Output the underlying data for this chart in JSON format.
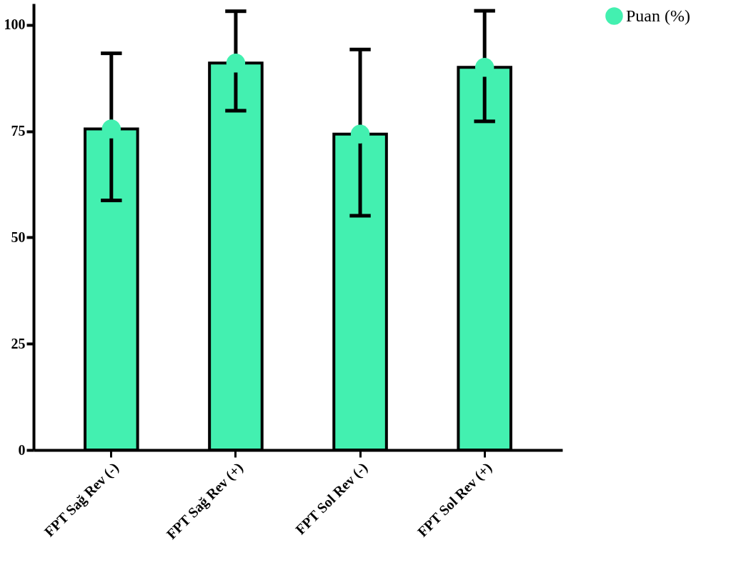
{
  "chart_data": {
    "type": "bar",
    "categories": [
      "FPT Sağ Rev (-)",
      "FPT Sağ Rev (+)",
      "FPT Sol Rev (-)",
      "FPT Sol Rev (+)"
    ],
    "series": [
      {
        "type": "bar",
        "color": "#43f0b0",
        "values": [
          75.5,
          91,
          74.3,
          90
        ],
        "errors": [
          [
            58.7,
            93.3
          ],
          [
            79.8,
            103.2
          ],
          [
            55.1,
            94.2
          ],
          [
            77.3,
            103.3
          ]
        ]
      },
      {
        "type": "scatter",
        "name": "Puan (%)",
        "color": "#43f0b0",
        "x": [
          "FPT Sağ Rev (-)",
          "FPT Sağ Rev (+)",
          "FPT Sol Rev (-)",
          "FPT Sol Rev (+)"
        ],
        "values": [
          75.5,
          91,
          74.3,
          90
        ]
      }
    ],
    "ylim": [
      0,
      105
    ],
    "yticks": [
      0,
      25,
      50,
      75,
      100
    ],
    "grid": false,
    "legend": "top right",
    "marker": "circle"
  }
}
